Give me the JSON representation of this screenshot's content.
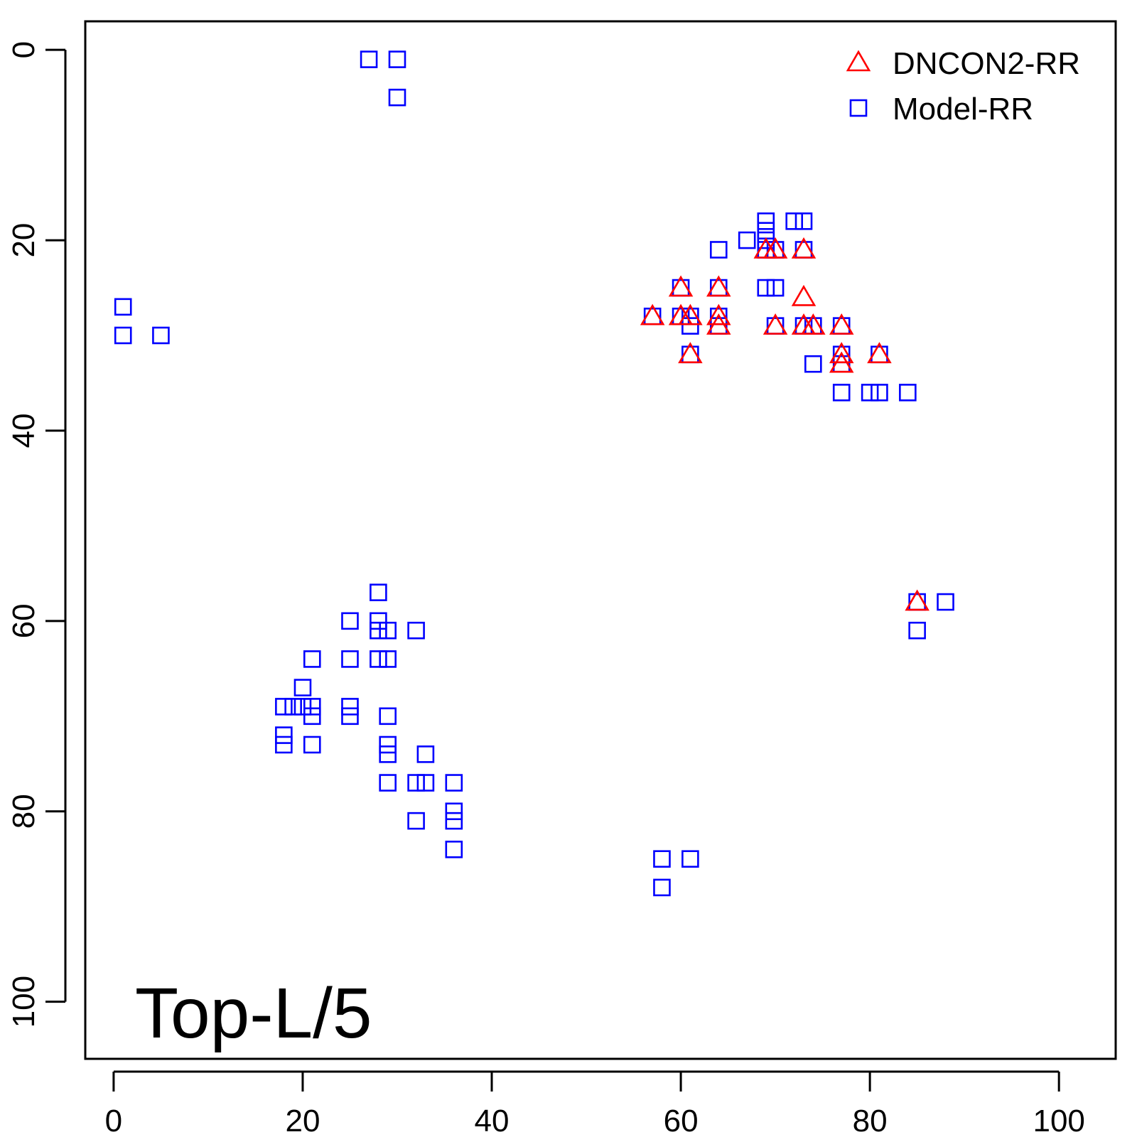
{
  "chart_data": {
    "type": "scatter",
    "title": "",
    "xlabel": "",
    "ylabel": "",
    "xlim": [
      -3,
      106
    ],
    "ylim": [
      106,
      -3
    ],
    "y_reversed": true,
    "x_ticks": [
      0,
      20,
      40,
      60,
      80,
      100
    ],
    "x_tick_labels": [
      "0",
      "20",
      "40",
      "60",
      "80",
      "100"
    ],
    "y_ticks": [
      0,
      20,
      40,
      60,
      80,
      100
    ],
    "y_tick_labels": [
      "0",
      "20",
      "40",
      "60",
      "80",
      "100"
    ],
    "grid": false,
    "legend": {
      "position": "top-right"
    },
    "annotation": "Top-L/5",
    "series": [
      {
        "name": "DNCON2-RR",
        "marker": "triangle",
        "color": "#ff0000",
        "points": [
          [
            57,
            28
          ],
          [
            60,
            25
          ],
          [
            60,
            28
          ],
          [
            61,
            28
          ],
          [
            61,
            32
          ],
          [
            64,
            25
          ],
          [
            64,
            28
          ],
          [
            64,
            29
          ],
          [
            69,
            21
          ],
          [
            70,
            21
          ],
          [
            70,
            29
          ],
          [
            73,
            21
          ],
          [
            73,
            26
          ],
          [
            73,
            29
          ],
          [
            74,
            29
          ],
          [
            77,
            29
          ],
          [
            77,
            32
          ],
          [
            77,
            33
          ],
          [
            81,
            32
          ],
          [
            85,
            58
          ]
        ]
      },
      {
        "name": "Model-RR",
        "marker": "square",
        "color": "#0000ff",
        "points": [
          [
            27,
            1
          ],
          [
            30,
            1
          ],
          [
            30,
            5
          ],
          [
            1,
            27
          ],
          [
            1,
            30
          ],
          [
            5,
            30
          ],
          [
            57,
            28
          ],
          [
            60,
            25
          ],
          [
            60,
            28
          ],
          [
            61,
            28
          ],
          [
            61,
            29
          ],
          [
            61,
            32
          ],
          [
            64,
            21
          ],
          [
            64,
            25
          ],
          [
            64,
            28
          ],
          [
            64,
            29
          ],
          [
            67,
            20
          ],
          [
            69,
            18
          ],
          [
            69,
            19
          ],
          [
            69,
            20
          ],
          [
            69,
            21
          ],
          [
            70,
            21
          ],
          [
            69,
            25
          ],
          [
            70,
            25
          ],
          [
            70,
            29
          ],
          [
            72,
            18
          ],
          [
            73,
            18
          ],
          [
            73,
            21
          ],
          [
            73,
            29
          ],
          [
            74,
            29
          ],
          [
            74,
            33
          ],
          [
            77,
            29
          ],
          [
            77,
            32
          ],
          [
            77,
            33
          ],
          [
            77,
            36
          ],
          [
            80,
            36
          ],
          [
            81,
            36
          ],
          [
            84,
            36
          ],
          [
            81,
            32
          ],
          [
            85,
            58
          ],
          [
            88,
            58
          ],
          [
            85,
            61
          ],
          [
            28,
            57
          ],
          [
            28,
            60
          ],
          [
            25,
            60
          ],
          [
            28,
            61
          ],
          [
            29,
            61
          ],
          [
            32,
            61
          ],
          [
            21,
            64
          ],
          [
            25,
            64
          ],
          [
            28,
            64
          ],
          [
            29,
            64
          ],
          [
            20,
            67
          ],
          [
            18,
            69
          ],
          [
            19,
            69
          ],
          [
            20,
            69
          ],
          [
            21,
            69
          ],
          [
            25,
            69
          ],
          [
            21,
            70
          ],
          [
            25,
            70
          ],
          [
            29,
            70
          ],
          [
            18,
            72
          ],
          [
            18,
            73
          ],
          [
            21,
            73
          ],
          [
            29,
            73
          ],
          [
            29,
            74
          ],
          [
            33,
            74
          ],
          [
            29,
            77
          ],
          [
            32,
            77
          ],
          [
            33,
            77
          ],
          [
            36,
            77
          ],
          [
            36,
            80
          ],
          [
            32,
            81
          ],
          [
            36,
            81
          ],
          [
            36,
            84
          ],
          [
            58,
            85
          ],
          [
            61,
            85
          ],
          [
            58,
            88
          ]
        ]
      }
    ]
  }
}
